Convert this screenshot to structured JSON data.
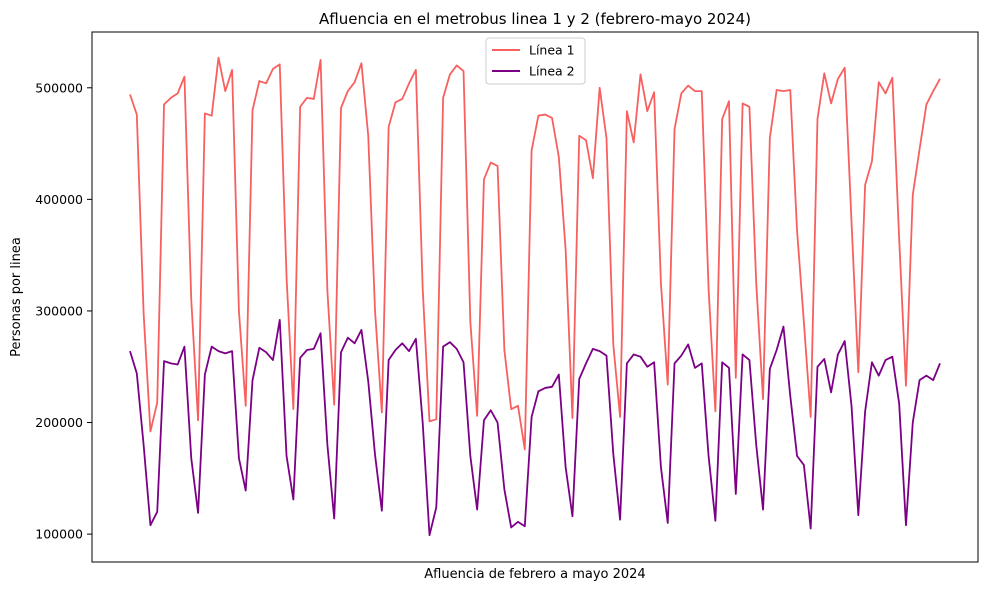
{
  "chart_data": {
    "type": "line",
    "title": "Afluencia en el metrobus linea 1 y 2 (febrero-mayo 2024)",
    "xlabel": "Afluencia de febrero a mayo 2024",
    "ylabel": "Personas por linea",
    "ylim": [
      75000,
      550000
    ],
    "yticks": [
      100000,
      200000,
      300000,
      400000,
      500000
    ],
    "ytick_labels": [
      "100000",
      "200000",
      "300000",
      "400000",
      "500000"
    ],
    "x_ticks_shown": false,
    "grid": false,
    "legend_position": "top-center",
    "series": [
      {
        "name": "Línea 1",
        "color": "#f8605f",
        "values": [
          494000,
          476000,
          298000,
          192000,
          218000,
          485000,
          491000,
          495000,
          510000,
          310000,
          202000,
          477000,
          475000,
          527000,
          497000,
          516000,
          300000,
          215000,
          480000,
          506000,
          504000,
          517000,
          521000,
          330000,
          212000,
          483000,
          491000,
          490000,
          525000,
          318000,
          216000,
          482000,
          497000,
          505000,
          522000,
          457000,
          300000,
          209000,
          465000,
          487000,
          490000,
          504000,
          516000,
          320000,
          201000,
          203000,
          491000,
          512000,
          520000,
          515000,
          290000,
          206000,
          418000,
          433000,
          430000,
          265000,
          212000,
          215000,
          176000,
          444000,
          475000,
          476000,
          473000,
          438000,
          355000,
          204000,
          457000,
          453000,
          419000,
          500000,
          455000,
          270000,
          205000,
          479000,
          451000,
          512000,
          479000,
          496000,
          325000,
          234000,
          463000,
          495000,
          502000,
          497000,
          497000,
          320000,
          210000,
          472000,
          488000,
          240000,
          486000,
          483000,
          325000,
          221000,
          455000,
          498000,
          497000,
          498000,
          372000,
          290000,
          205000,
          472000,
          513000,
          486000,
          508000,
          518000,
          380000,
          245000,
          413000,
          434000,
          505000,
          495000,
          509000,
          365000,
          233000,
          404000,
          445000,
          485000,
          497000,
          508000
        ]
      },
      {
        "name": "Línea 2",
        "color": "#7b0085",
        "values": [
          264000,
          244000,
          180000,
          108000,
          120000,
          255000,
          253000,
          252000,
          268000,
          168000,
          119000,
          243000,
          268000,
          264000,
          262000,
          264000,
          168000,
          139000,
          238000,
          267000,
          263000,
          256000,
          292000,
          170000,
          131000,
          258000,
          265000,
          266000,
          280000,
          180000,
          114000,
          263000,
          276000,
          271000,
          283000,
          237000,
          171000,
          121000,
          256000,
          265000,
          271000,
          264000,
          275000,
          200000,
          99000,
          124000,
          268000,
          272000,
          266000,
          254000,
          170000,
          122000,
          202000,
          211000,
          200000,
          140000,
          106000,
          111000,
          107000,
          205000,
          228000,
          231000,
          232000,
          243000,
          160000,
          116000,
          239000,
          253000,
          266000,
          264000,
          260000,
          172000,
          113000,
          253000,
          261000,
          259000,
          250000,
          254000,
          160000,
          110000,
          253000,
          260000,
          270000,
          249000,
          253000,
          170000,
          112000,
          254000,
          249000,
          136000,
          261000,
          256000,
          180000,
          122000,
          248000,
          265000,
          286000,
          224000,
          170000,
          162000,
          105000,
          250000,
          257000,
          227000,
          261000,
          273000,
          215000,
          117000,
          210000,
          254000,
          242000,
          256000,
          259000,
          217000,
          108000,
          200000,
          238000,
          242000,
          238000,
          253000
        ]
      }
    ]
  }
}
